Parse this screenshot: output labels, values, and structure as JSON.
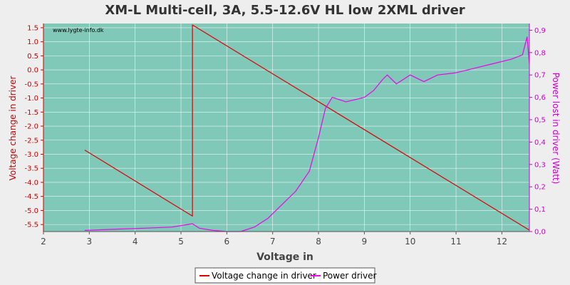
{
  "chart_data": {
    "type": "line",
    "title": "XM-L Multi-cell, 3A, 5.5-12.6V HL low 2XML driver",
    "xlabel": "Voltage in",
    "ylabel": "Voltage change in driver",
    "y2label": "Power lost in driver (Watt)",
    "watermark": "www.lygte-info.dk",
    "xlim": [
      2,
      12.6
    ],
    "ylim": [
      -5.75,
      1.65
    ],
    "y2lim": [
      0,
      0.93
    ],
    "x_ticks": [
      "2",
      "3",
      "4",
      "5",
      "6",
      "7",
      "8",
      "9",
      "10",
      "11",
      "12"
    ],
    "y_ticks": [
      "1.5",
      "1.0",
      "0.5",
      "0.0",
      "-0.5",
      "-1.0",
      "-1.5",
      "-2.0",
      "-2.5",
      "-3.0",
      "-3.5",
      "-4.0",
      "-4.5",
      "-5.0",
      "-5.5"
    ],
    "y2_ticks": [
      "0,9",
      "0,8",
      "0,7",
      "0,6",
      "0,5",
      "0,4",
      "0,3",
      "0,2",
      "0,1",
      "0,0"
    ],
    "grid": true,
    "legend_position": "bottom-center",
    "colors": {
      "plot_bg": "#80c8b8",
      "series1": "#dd0000",
      "series2": "#ee00ee",
      "left_axis": "#cc0000",
      "right_axis": "#cc00cc"
    },
    "series": [
      {
        "name": "Voltage change in driver",
        "axis": "left",
        "points": [
          [
            2.9,
            -2.85
          ],
          [
            5.25,
            -5.2
          ],
          [
            5.25,
            1.6
          ],
          [
            12.6,
            -5.7
          ]
        ]
      },
      {
        "name": "Power driver",
        "axis": "right",
        "points": [
          [
            2.9,
            0.005
          ],
          [
            3.5,
            0.01
          ],
          [
            4.2,
            0.015
          ],
          [
            4.8,
            0.02
          ],
          [
            5.25,
            0.035
          ],
          [
            5.4,
            0.015
          ],
          [
            5.7,
            0.005
          ],
          [
            6.0,
            0.0
          ],
          [
            6.3,
            0.0
          ],
          [
            6.6,
            0.02
          ],
          [
            6.9,
            0.06
          ],
          [
            7.2,
            0.12
          ],
          [
            7.5,
            0.18
          ],
          [
            7.8,
            0.27
          ],
          [
            8.0,
            0.42
          ],
          [
            8.15,
            0.55
          ],
          [
            8.3,
            0.6
          ],
          [
            8.6,
            0.58
          ],
          [
            8.8,
            0.59
          ],
          [
            9.0,
            0.6
          ],
          [
            9.2,
            0.63
          ],
          [
            9.4,
            0.68
          ],
          [
            9.5,
            0.7
          ],
          [
            9.7,
            0.66
          ],
          [
            10.0,
            0.7
          ],
          [
            10.3,
            0.67
          ],
          [
            10.6,
            0.7
          ],
          [
            11.0,
            0.71
          ],
          [
            11.4,
            0.73
          ],
          [
            11.8,
            0.75
          ],
          [
            12.2,
            0.77
          ],
          [
            12.45,
            0.79
          ],
          [
            12.55,
            0.87
          ],
          [
            12.6,
            0.75
          ]
        ]
      }
    ]
  }
}
